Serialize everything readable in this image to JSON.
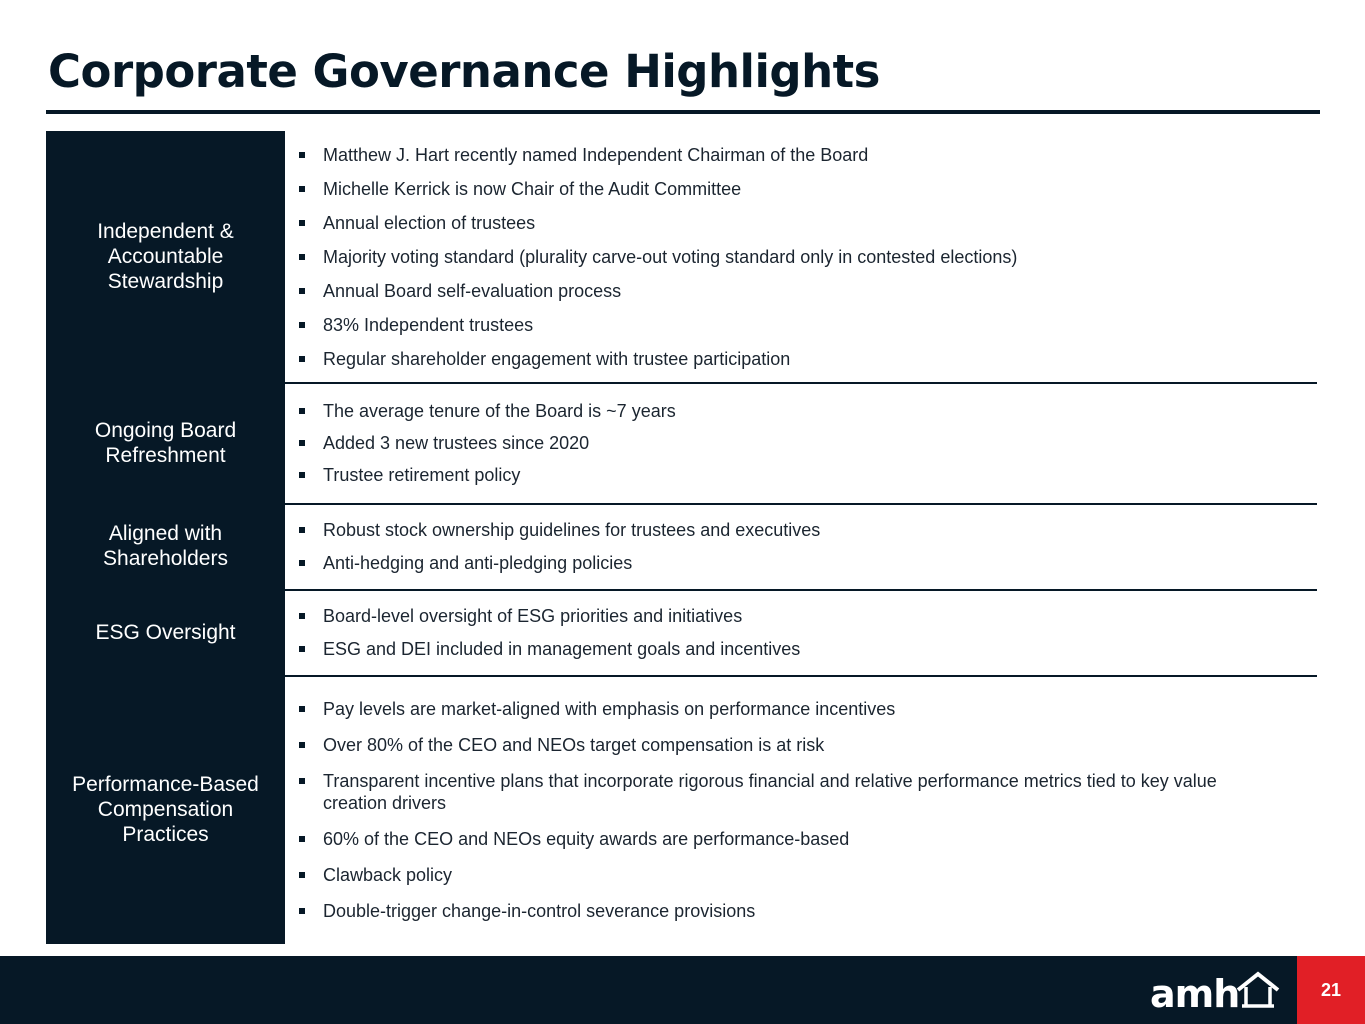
{
  "title": "Corporate Governance Highlights",
  "rows": [
    {
      "label": "Independent & Accountable Stewardship",
      "items": [
        "Matthew J. Hart recently named Independent Chairman of the Board",
        "Michelle Kerrick is now Chair of the Audit Committee",
        "Annual election of trustees",
        "Majority voting standard (plurality carve-out voting standard only in contested elections)",
        "Annual Board self-evaluation process",
        "83% Independent trustees",
        "Regular shareholder engagement with trustee participation"
      ]
    },
    {
      "label": "Ongoing Board Refreshment",
      "items": [
        "The average tenure of the Board is ~7 years",
        "Added 3 new trustees since 2020",
        "Trustee retirement policy"
      ]
    },
    {
      "label": "Aligned with Shareholders",
      "items": [
        "Robust stock ownership guidelines for trustees and executives",
        "Anti-hedging and anti-pledging policies"
      ]
    },
    {
      "label": "ESG Oversight",
      "items": [
        "Board-level oversight of ESG priorities and initiatives",
        "ESG and DEI included in management goals and incentives"
      ]
    },
    {
      "label": "Performance-Based Compensation Practices",
      "items": [
        "Pay levels are market-aligned with emphasis on performance incentives",
        "Over 80% of the CEO and NEOs target compensation is at risk",
        "Transparent incentive plans that incorporate rigorous financial and relative performance metrics tied to key value creation drivers",
        "60% of the CEO and NEOs equity awards are performance-based",
        "Clawback policy",
        "Double-trigger change-in-control severance provisions"
      ]
    }
  ],
  "footer": {
    "logo_text": "amh",
    "logo_icon": "house-roof-icon",
    "page_number": "21"
  },
  "colors": {
    "navy": "#061826",
    "accent_red": "#e11f26"
  }
}
